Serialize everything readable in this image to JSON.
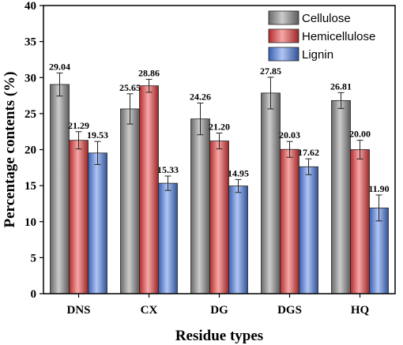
{
  "chart_data": {
    "type": "bar",
    "title": "",
    "xlabel": "Residue types",
    "ylabel": "Percentage contents (%)",
    "ylim": [
      0,
      40
    ],
    "yticks": [
      0,
      5,
      10,
      15,
      20,
      25,
      30,
      35,
      40
    ],
    "categories": [
      "DNS",
      "CX",
      "DG",
      "DGS",
      "HQ"
    ],
    "legend_position": "top-right",
    "grid": false,
    "series": [
      {
        "name": "Cellulose",
        "color": "#8c8c8c",
        "values": [
          29.04,
          25.65,
          24.26,
          27.85,
          26.81
        ],
        "labels": [
          "29.04",
          "25.65",
          "24.26",
          "27.85",
          "26.81"
        ],
        "errors": [
          1.6,
          2.1,
          2.2,
          2.2,
          1.1
        ]
      },
      {
        "name": "Hemicellulose",
        "color": "#ee3b3b",
        "values": [
          21.29,
          28.86,
          21.2,
          20.03,
          20.0
        ],
        "labels": [
          "21.29",
          "28.86",
          "21.20",
          "20.03",
          "20.00"
        ],
        "errors": [
          1.2,
          0.9,
          1.1,
          1.1,
          1.3
        ]
      },
      {
        "name": "Lignin",
        "color": "#4d7fe8",
        "values": [
          19.53,
          15.33,
          14.95,
          17.62,
          11.9
        ],
        "labels": [
          "19.53",
          "15.33",
          "14.95",
          "17.62",
          "11.90"
        ],
        "errors": [
          1.6,
          1.0,
          0.9,
          1.1,
          1.8
        ]
      }
    ]
  }
}
